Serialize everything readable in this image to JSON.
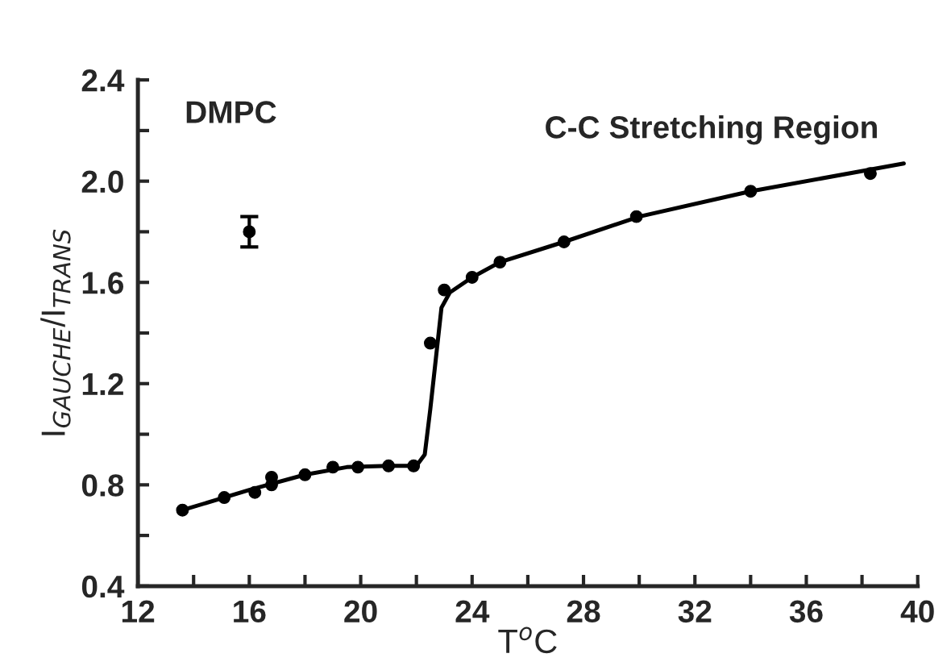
{
  "chart_data": {
    "type": "scatter",
    "xlabel": "T$^{o}$C",
    "ylabel": "I$_{GAUCHE}$/I$_{TRANS}$",
    "annotations": [
      "DMPC",
      "C-C Stretching Region"
    ],
    "xlim": [
      12,
      40
    ],
    "ylim": [
      0.4,
      2.4
    ],
    "xticks": [
      12,
      {
        "value": 14,
        "label": null
      },
      16,
      {
        "value": 18,
        "label": null
      },
      20,
      {
        "value": 22,
        "label": null
      },
      24,
      {
        "value": 26,
        "label": null
      },
      28,
      {
        "value": 30,
        "label": null
      },
      32,
      {
        "value": 34,
        "label": null
      },
      36,
      {
        "value": 38,
        "label": null
      },
      40
    ],
    "yticks": [
      {
        "value": 0.4,
        "label": "0.4"
      },
      {
        "value": 0.6,
        "label": null
      },
      {
        "value": 0.8,
        "label": "0.8"
      },
      {
        "value": 1.0,
        "label": null
      },
      {
        "value": 1.2,
        "label": "1.2"
      },
      {
        "value": 1.4,
        "label": null
      },
      {
        "value": 1.6,
        "label": "1.6"
      },
      {
        "value": 1.8,
        "label": null
      },
      {
        "value": 2.0,
        "label": "2.0"
      },
      {
        "value": 2.2,
        "label": null
      },
      {
        "value": 2.4,
        "label": "2.4"
      }
    ],
    "grid": false,
    "legend": false,
    "marker": "circle",
    "series": [
      {
        "type": "line",
        "color": "#000000",
        "marker": "none",
        "x": [
          13.6,
          16,
          18,
          19.5,
          21,
          22,
          22.3,
          22.5,
          22.7,
          22.9,
          23.2,
          24,
          25,
          27.3,
          30,
          34,
          39.5
        ],
        "values": [
          0.7,
          0.78,
          0.84,
          0.87,
          0.875,
          0.875,
          0.92,
          1.1,
          1.3,
          1.5,
          1.56,
          1.62,
          1.68,
          1.76,
          1.86,
          1.96,
          2.07
        ]
      },
      {
        "color": "#000000",
        "x": [
          13.6,
          15.1,
          16.2,
          16.8,
          16.8,
          18.0,
          19.0,
          19.9,
          21.0,
          21.9,
          22.5,
          23.0,
          24.0,
          25.0,
          27.3,
          29.9,
          34.0,
          38.3
        ],
        "values": [
          0.7,
          0.75,
          0.77,
          0.8,
          0.83,
          0.84,
          0.87,
          0.87,
          0.875,
          0.875,
          1.36,
          1.57,
          1.62,
          1.68,
          1.76,
          1.86,
          1.96,
          2.03
        ]
      },
      {
        "color": "#000000",
        "x": [
          16.0
        ],
        "values": [
          1.8
        ],
        "errors": [
          0.06
        ]
      }
    ]
  }
}
